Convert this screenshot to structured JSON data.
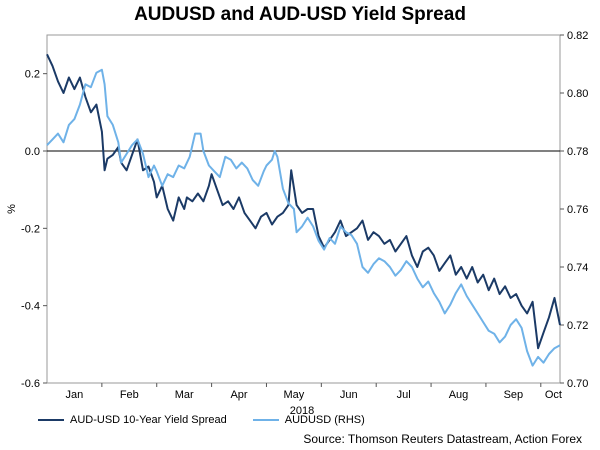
{
  "chart_data": {
    "type": "line",
    "title": "AUDUSD and AUD-USD Yield Spread",
    "xlabel": "2018",
    "ylabel": "%",
    "ylabel_right": "",
    "x_ticks": [
      "Jan",
      "Feb",
      "Mar",
      "Apr",
      "May",
      "Jun",
      "Jul",
      "Aug",
      "Sep",
      "Oct"
    ],
    "x_range": [
      0,
      9.35
    ],
    "ylim": [
      -0.6,
      0.3
    ],
    "y_ticks": [
      -0.6,
      -0.4,
      -0.2,
      0.0,
      0.2
    ],
    "y_tick_labels": [
      "-0.6",
      "-0.4",
      "-0.2",
      "0.0",
      "0.2"
    ],
    "ylim_right": [
      0.7,
      0.82
    ],
    "y_ticks_right": [
      0.7,
      0.72,
      0.74,
      0.76,
      0.78,
      0.8,
      0.82
    ],
    "y_tick_labels_right": [
      "0.70",
      "0.72",
      "0.74",
      "0.76",
      "0.78",
      "0.80",
      "0.82"
    ],
    "legend_position": "bottom-left",
    "grid": false,
    "series": [
      {
        "name": "AUD-USD 10-Year Yield Spread",
        "axis": "left",
        "color": "#1b3a66",
        "points": [
          [
            0.0,
            0.25
          ],
          [
            0.1,
            0.22
          ],
          [
            0.2,
            0.18
          ],
          [
            0.3,
            0.15
          ],
          [
            0.4,
            0.19
          ],
          [
            0.5,
            0.16
          ],
          [
            0.6,
            0.19
          ],
          [
            0.7,
            0.14
          ],
          [
            0.8,
            0.1
          ],
          [
            0.9,
            0.12
          ],
          [
            1.0,
            0.05
          ],
          [
            1.05,
            -0.05
          ],
          [
            1.1,
            -0.02
          ],
          [
            1.2,
            -0.01
          ],
          [
            1.3,
            0.01
          ],
          [
            1.35,
            -0.03
          ],
          [
            1.45,
            -0.05
          ],
          [
            1.55,
            -0.01
          ],
          [
            1.65,
            0.03
          ],
          [
            1.75,
            -0.05
          ],
          [
            1.85,
            -0.04
          ],
          [
            1.95,
            -0.08
          ],
          [
            2.0,
            -0.12
          ],
          [
            2.1,
            -0.09
          ],
          [
            2.2,
            -0.15
          ],
          [
            2.3,
            -0.18
          ],
          [
            2.4,
            -0.12
          ],
          [
            2.5,
            -0.15
          ],
          [
            2.55,
            -0.12
          ],
          [
            2.65,
            -0.13
          ],
          [
            2.75,
            -0.11
          ],
          [
            2.85,
            -0.13
          ],
          [
            2.95,
            -0.09
          ],
          [
            3.0,
            -0.06
          ],
          [
            3.1,
            -0.1
          ],
          [
            3.2,
            -0.14
          ],
          [
            3.3,
            -0.13
          ],
          [
            3.4,
            -0.15
          ],
          [
            3.5,
            -0.12
          ],
          [
            3.6,
            -0.16
          ],
          [
            3.7,
            -0.18
          ],
          [
            3.8,
            -0.2
          ],
          [
            3.9,
            -0.17
          ],
          [
            4.0,
            -0.16
          ],
          [
            4.1,
            -0.19
          ],
          [
            4.2,
            -0.17
          ],
          [
            4.3,
            -0.16
          ],
          [
            4.4,
            -0.14
          ],
          [
            4.45,
            -0.05
          ],
          [
            4.55,
            -0.14
          ],
          [
            4.65,
            -0.16
          ],
          [
            4.75,
            -0.15
          ],
          [
            4.85,
            -0.15
          ],
          [
            4.95,
            -0.22
          ],
          [
            5.05,
            -0.25
          ],
          [
            5.15,
            -0.23
          ],
          [
            5.25,
            -0.21
          ],
          [
            5.35,
            -0.18
          ],
          [
            5.45,
            -0.22
          ],
          [
            5.55,
            -0.21
          ],
          [
            5.65,
            -0.2
          ],
          [
            5.75,
            -0.18
          ],
          [
            5.85,
            -0.23
          ],
          [
            5.95,
            -0.21
          ],
          [
            6.05,
            -0.22
          ],
          [
            6.15,
            -0.24
          ],
          [
            6.25,
            -0.23
          ],
          [
            6.35,
            -0.26
          ],
          [
            6.45,
            -0.24
          ],
          [
            6.55,
            -0.22
          ],
          [
            6.65,
            -0.27
          ],
          [
            6.75,
            -0.3
          ],
          [
            6.85,
            -0.26
          ],
          [
            6.95,
            -0.25
          ],
          [
            7.05,
            -0.27
          ],
          [
            7.15,
            -0.31
          ],
          [
            7.25,
            -0.29
          ],
          [
            7.35,
            -0.27
          ],
          [
            7.45,
            -0.32
          ],
          [
            7.55,
            -0.3
          ],
          [
            7.65,
            -0.33
          ],
          [
            7.75,
            -0.3
          ],
          [
            7.85,
            -0.34
          ],
          [
            7.95,
            -0.32
          ],
          [
            8.05,
            -0.36
          ],
          [
            8.15,
            -0.33
          ],
          [
            8.25,
            -0.37
          ],
          [
            8.35,
            -0.35
          ],
          [
            8.45,
            -0.38
          ],
          [
            8.55,
            -0.37
          ],
          [
            8.65,
            -0.4
          ],
          [
            8.75,
            -0.42
          ],
          [
            8.85,
            -0.39
          ],
          [
            8.95,
            -0.51
          ],
          [
            9.05,
            -0.47
          ],
          [
            9.15,
            -0.43
          ],
          [
            9.25,
            -0.38
          ],
          [
            9.35,
            -0.45
          ]
        ]
      },
      {
        "name": "AUDUSD (RHS)",
        "axis": "right",
        "color": "#6fb2e8",
        "points": [
          [
            0.0,
            0.782
          ],
          [
            0.1,
            0.784
          ],
          [
            0.2,
            0.786
          ],
          [
            0.3,
            0.783
          ],
          [
            0.4,
            0.789
          ],
          [
            0.5,
            0.791
          ],
          [
            0.6,
            0.796
          ],
          [
            0.7,
            0.803
          ],
          [
            0.8,
            0.802
          ],
          [
            0.9,
            0.807
          ],
          [
            1.0,
            0.808
          ],
          [
            1.05,
            0.803
          ],
          [
            1.1,
            0.792
          ],
          [
            1.2,
            0.789
          ],
          [
            1.3,
            0.783
          ],
          [
            1.35,
            0.776
          ],
          [
            1.45,
            0.779
          ],
          [
            1.55,
            0.782
          ],
          [
            1.65,
            0.784
          ],
          [
            1.75,
            0.779
          ],
          [
            1.85,
            0.771
          ],
          [
            1.95,
            0.775
          ],
          [
            2.0,
            0.773
          ],
          [
            2.1,
            0.768
          ],
          [
            2.2,
            0.772
          ],
          [
            2.3,
            0.771
          ],
          [
            2.4,
            0.775
          ],
          [
            2.5,
            0.774
          ],
          [
            2.6,
            0.778
          ],
          [
            2.7,
            0.786
          ],
          [
            2.8,
            0.786
          ],
          [
            2.85,
            0.78
          ],
          [
            2.95,
            0.775
          ],
          [
            3.05,
            0.773
          ],
          [
            3.15,
            0.771
          ],
          [
            3.25,
            0.778
          ],
          [
            3.35,
            0.777
          ],
          [
            3.45,
            0.774
          ],
          [
            3.55,
            0.776
          ],
          [
            3.65,
            0.774
          ],
          [
            3.75,
            0.77
          ],
          [
            3.85,
            0.768
          ],
          [
            3.95,
            0.773
          ],
          [
            4.0,
            0.775
          ],
          [
            4.1,
            0.777
          ],
          [
            4.15,
            0.78
          ],
          [
            4.2,
            0.778
          ],
          [
            4.3,
            0.767
          ],
          [
            4.4,
            0.762
          ],
          [
            4.5,
            0.76
          ],
          [
            4.55,
            0.752
          ],
          [
            4.65,
            0.754
          ],
          [
            4.75,
            0.757
          ],
          [
            4.85,
            0.754
          ],
          [
            4.95,
            0.749
          ],
          [
            5.05,
            0.746
          ],
          [
            5.15,
            0.75
          ],
          [
            5.25,
            0.748
          ],
          [
            5.35,
            0.754
          ],
          [
            5.45,
            0.752
          ],
          [
            5.55,
            0.751
          ],
          [
            5.65,
            0.748
          ],
          [
            5.75,
            0.74
          ],
          [
            5.85,
            0.738
          ],
          [
            5.95,
            0.741
          ],
          [
            6.05,
            0.743
          ],
          [
            6.15,
            0.742
          ],
          [
            6.25,
            0.74
          ],
          [
            6.35,
            0.737
          ],
          [
            6.45,
            0.739
          ],
          [
            6.55,
            0.742
          ],
          [
            6.65,
            0.74
          ],
          [
            6.75,
            0.736
          ],
          [
            6.85,
            0.733
          ],
          [
            6.95,
            0.735
          ],
          [
            7.05,
            0.731
          ],
          [
            7.15,
            0.728
          ],
          [
            7.25,
            0.724
          ],
          [
            7.35,
            0.727
          ],
          [
            7.45,
            0.731
          ],
          [
            7.55,
            0.734
          ],
          [
            7.65,
            0.73
          ],
          [
            7.75,
            0.727
          ],
          [
            7.85,
            0.724
          ],
          [
            7.95,
            0.721
          ],
          [
            8.05,
            0.718
          ],
          [
            8.15,
            0.717
          ],
          [
            8.25,
            0.714
          ],
          [
            8.35,
            0.716
          ],
          [
            8.45,
            0.72
          ],
          [
            8.55,
            0.722
          ],
          [
            8.65,
            0.719
          ],
          [
            8.75,
            0.711
          ],
          [
            8.85,
            0.706
          ],
          [
            8.95,
            0.709
          ],
          [
            9.05,
            0.707
          ],
          [
            9.15,
            0.71
          ],
          [
            9.25,
            0.712
          ],
          [
            9.35,
            0.713
          ]
        ]
      }
    ]
  },
  "legend": [
    {
      "label": "AUD-USD 10-Year Yield Spread",
      "color": "#1b3a66"
    },
    {
      "label": "AUDUSD (RHS)",
      "color": "#6fb2e8"
    }
  ],
  "source": "Source: Thomson Reuters Datastream, Action Forex"
}
